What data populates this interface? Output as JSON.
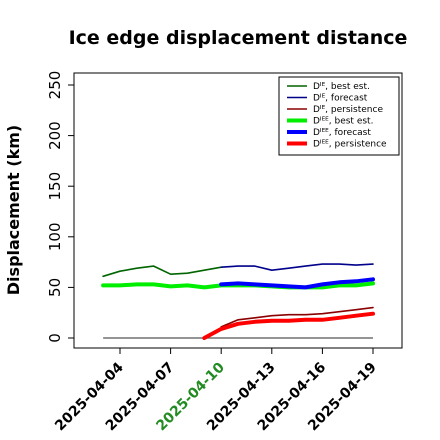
{
  "chart_data": {
    "type": "line",
    "title": "Ice edge displacement distance",
    "ylabel": "Displacement (km)",
    "xlabel": "",
    "ylim": [
      0,
      260
    ],
    "yticks": [
      0,
      50,
      100,
      150,
      200,
      250
    ],
    "xticks": [
      {
        "label": "2025-04-04",
        "day": 4,
        "color": "#000000"
      },
      {
        "label": "2025-04-07",
        "day": 7,
        "color": "#000000"
      },
      {
        "label": "2025-04-10",
        "day": 10,
        "color": "#228B22"
      },
      {
        "label": "2025-04-13",
        "day": 13,
        "color": "#000000"
      },
      {
        "label": "2025-04-16",
        "day": 16,
        "color": "#000000"
      },
      {
        "label": "2025-04-19",
        "day": 19,
        "color": "#000000"
      }
    ],
    "xlim": [
      2,
      20.6
    ],
    "legend_position": "top-right",
    "grid": false,
    "series": [
      {
        "name": "Dᴵᴱ, best est.",
        "color": "#006400",
        "width": 1.6,
        "points": [
          [
            3,
            61
          ],
          [
            4,
            66
          ],
          [
            5,
            69
          ],
          [
            6,
            71
          ],
          [
            7,
            63
          ],
          [
            8,
            64
          ],
          [
            9,
            67
          ],
          [
            10,
            70
          ]
        ]
      },
      {
        "name": "Dᴵᴱ, forecast",
        "color": "#00008B",
        "width": 1.6,
        "points": [
          [
            10,
            70
          ],
          [
            11,
            71
          ],
          [
            12,
            71
          ],
          [
            13,
            67
          ],
          [
            14,
            69
          ],
          [
            15,
            71
          ],
          [
            16,
            73
          ],
          [
            17,
            73
          ],
          [
            18,
            72
          ],
          [
            19,
            73
          ]
        ]
      },
      {
        "name": "Dᴵᴱ, persistence",
        "color": "#8B0000",
        "width": 1.6,
        "points": [
          [
            10,
            11
          ],
          [
            11,
            18
          ],
          [
            12,
            20
          ],
          [
            13,
            22
          ],
          [
            14,
            23
          ],
          [
            15,
            23
          ],
          [
            16,
            24
          ],
          [
            17,
            26
          ],
          [
            18,
            28
          ],
          [
            19,
            30
          ]
        ]
      },
      {
        "name": "Dᴵᴱᴱ, best est.",
        "color": "#00EE00",
        "width": 4,
        "points": [
          [
            3,
            52
          ],
          [
            4,
            52
          ],
          [
            5,
            53
          ],
          [
            6,
            53
          ],
          [
            7,
            51
          ],
          [
            8,
            52
          ],
          [
            9,
            50
          ],
          [
            10,
            52
          ],
          [
            11,
            52
          ],
          [
            12,
            52
          ],
          [
            13,
            51
          ],
          [
            14,
            50
          ],
          [
            15,
            50
          ],
          [
            16,
            50
          ],
          [
            17,
            52
          ],
          [
            18,
            52
          ],
          [
            19,
            54
          ]
        ]
      },
      {
        "name": "Dᴵᴱᴱ, forecast",
        "color": "#0000FF",
        "width": 4,
        "points": [
          [
            10,
            53
          ],
          [
            11,
            54
          ],
          [
            12,
            53
          ],
          [
            13,
            52
          ],
          [
            14,
            51
          ],
          [
            15,
            50
          ],
          [
            16,
            53
          ],
          [
            17,
            55
          ],
          [
            18,
            56
          ],
          [
            19,
            58
          ]
        ]
      },
      {
        "name": "Dᴵᴱᴱ, persistence",
        "color": "#FF0000",
        "width": 4,
        "points": [
          [
            9,
            0
          ],
          [
            10,
            9
          ],
          [
            11,
            14
          ],
          [
            12,
            16
          ],
          [
            13,
            17
          ],
          [
            14,
            17
          ],
          [
            15,
            18
          ],
          [
            16,
            18
          ],
          [
            17,
            20
          ],
          [
            18,
            22
          ],
          [
            19,
            24
          ]
        ]
      }
    ],
    "zero_line": {
      "color": "#555555",
      "from": 3,
      "to": 19
    }
  }
}
